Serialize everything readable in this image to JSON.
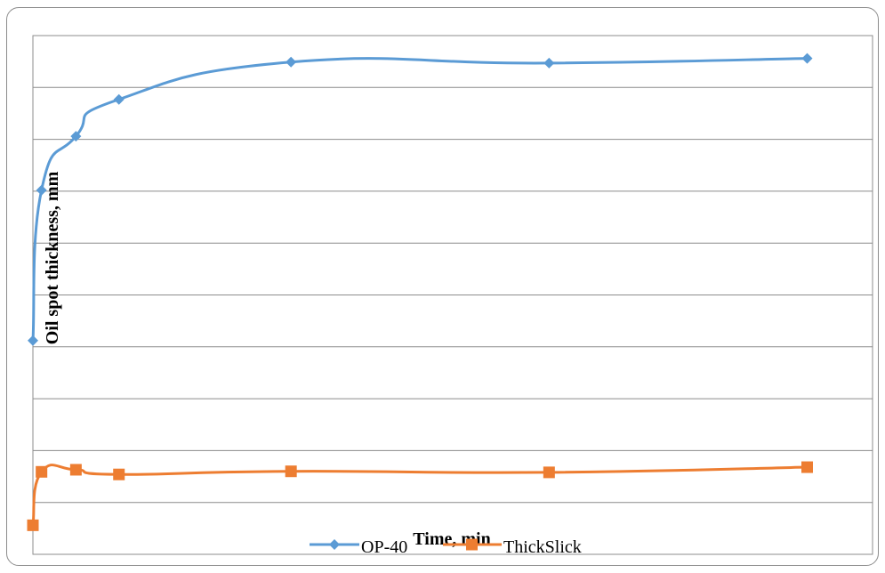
{
  "chart_data": {
    "type": "line",
    "title": "",
    "xlabel": "Time, min",
    "ylabel": "Oil spot thickness, mm",
    "grid": true,
    "legend_position": "bottom",
    "x_tick_labels_visible": false,
    "y_tick_labels_visible": false,
    "x": [
      0,
      1,
      5,
      10,
      30,
      60,
      90
    ],
    "series": [
      {
        "name": "OP-40",
        "color": "#5b9bd5",
        "marker": "diamond",
        "values": [
          0.412,
          0.702,
          0.806,
          0.877,
          0.949,
          0.947,
          0.956
        ]
      },
      {
        "name": "ThickSlick",
        "color": "#ed7d31",
        "marker": "square",
        "values": [
          0.056,
          0.159,
          0.163,
          0.154,
          0.16,
          0.158,
          0.168
        ]
      }
    ],
    "xlim": [
      0,
      97.6
    ],
    "ylim": [
      0,
      1.0
    ]
  }
}
